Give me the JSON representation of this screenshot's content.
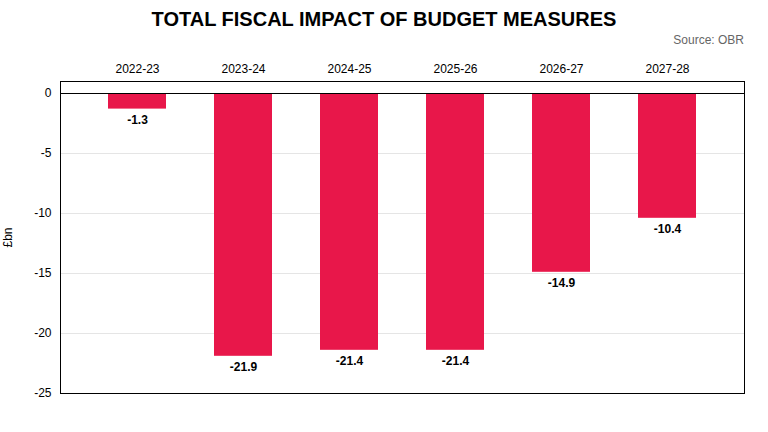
{
  "chart_data": {
    "type": "bar",
    "title": "TOTAL FISCAL IMPACT OF BUDGET MEASURES",
    "source": "Source: OBR",
    "ylabel": "£bn",
    "categories": [
      "2022-23",
      "2023-24",
      "2024-25",
      "2025-26",
      "2026-27",
      "2027-28"
    ],
    "values": [
      -1.3,
      -21.9,
      -21.4,
      -21.4,
      -14.9,
      -10.4
    ],
    "color": "#e8174a",
    "ylim": [
      -25,
      1
    ],
    "yticks": [
      0,
      -5,
      -10,
      -15,
      -20,
      -25
    ],
    "grid": true,
    "data_labels": true
  }
}
